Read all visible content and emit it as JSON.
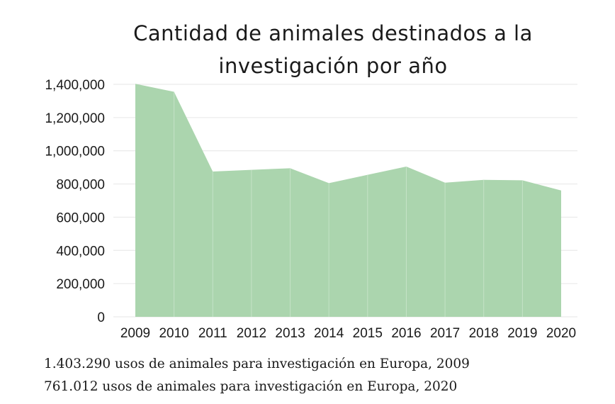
{
  "chart_data": {
    "type": "area",
    "title_lines": [
      "Cantidad de animales destinados a la",
      "investigación por año"
    ],
    "x": [
      "2009",
      "2010",
      "2011",
      "2012",
      "2013",
      "2014",
      "2015",
      "2016",
      "2017",
      "2018",
      "2019",
      "2020"
    ],
    "values": [
      1403290,
      1355000,
      875000,
      885000,
      895000,
      805000,
      855000,
      905000,
      808000,
      825000,
      822000,
      761012
    ],
    "ylim": [
      0,
      1400000
    ],
    "yticks": [
      0,
      200000,
      400000,
      600000,
      800000,
      1000000,
      1200000,
      1400000
    ],
    "ytick_labels": [
      "0",
      "200,000",
      "400,000",
      "600,000",
      "800,000",
      "1,000,000",
      "1,200,000",
      "1,400,000"
    ],
    "grid": true,
    "colors": {
      "fill": "#abd5ae",
      "divider": "#c5e3c7",
      "grid": "#e6e6e6"
    }
  },
  "footnotes": [
    "1.403.290 usos de animales para investigación en Europa, 2009",
    "761.012 usos de animales para investigación en Europa, 2020"
  ]
}
